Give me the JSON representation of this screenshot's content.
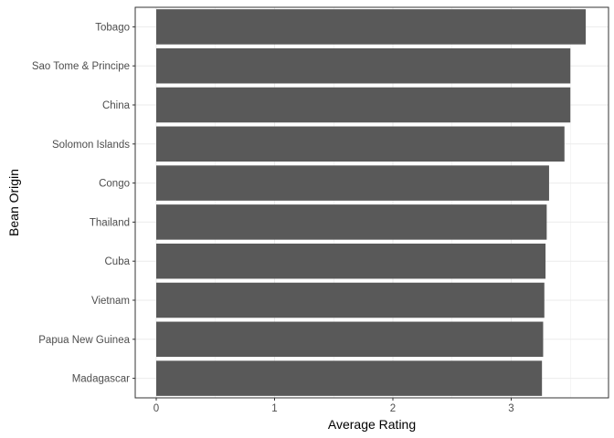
{
  "chart_data": {
    "type": "bar",
    "orientation": "horizontal",
    "categories": [
      "Tobago",
      "Sao Tome & Principe",
      "China",
      "Solomon Islands",
      "Congo",
      "Thailand",
      "Cuba",
      "Vietnam",
      "Papua New Guinea",
      "Madagascar"
    ],
    "values": [
      3.63,
      3.5,
      3.5,
      3.45,
      3.32,
      3.3,
      3.29,
      3.28,
      3.27,
      3.26
    ],
    "xlabel": "Average Rating",
    "ylabel": "Bean Origin",
    "xlim": [
      0,
      3.65
    ],
    "xticks": [
      0,
      1,
      2,
      3
    ],
    "grid": true,
    "bar_color": "#595959",
    "panel_border_color": "#333333",
    "grid_color": "#ebebeb"
  }
}
